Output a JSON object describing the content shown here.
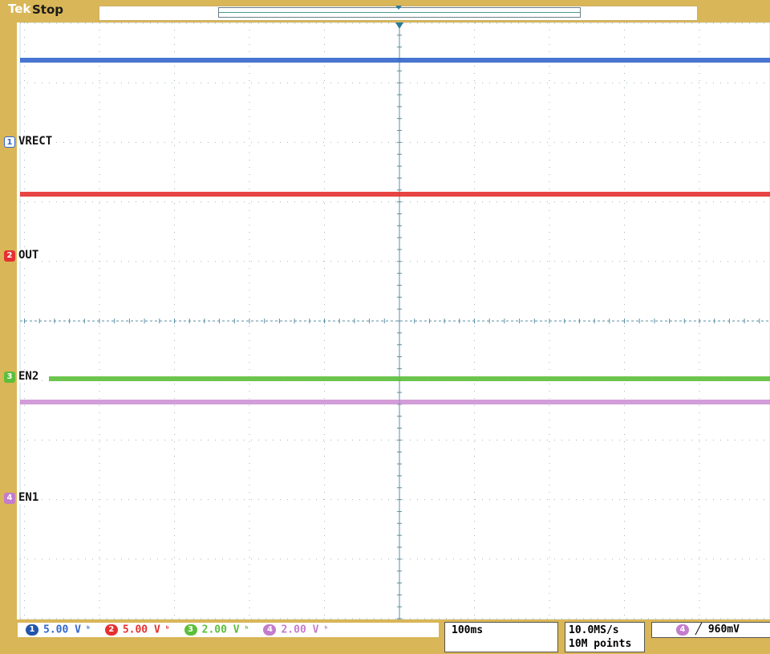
{
  "header": {
    "brand": "Tek",
    "acquisition_status": "Stop"
  },
  "channels": [
    {
      "id": "1",
      "label": "VRECT",
      "color": "#3366cc",
      "scale": "5.00 V",
      "coupling_icon": "bandwidth-limit-icon"
    },
    {
      "id": "2",
      "label": "OUT",
      "color": "#e53030",
      "scale": "5.00 V",
      "coupling_icon": "bandwidth-limit-icon"
    },
    {
      "id": "3",
      "label": "EN2",
      "color": "#5cbf3a",
      "scale": "2.00 V",
      "coupling_icon": "bandwidth-limit-icon"
    },
    {
      "id": "4",
      "label": "EN1",
      "color": "#c47ccc",
      "scale": "2.00 V",
      "coupling_icon": "bandwidth-limit-icon"
    }
  ],
  "horizontal": {
    "time_per_div": "100ms",
    "sample_rate": "10.0MS/s",
    "record_length": "10M points"
  },
  "trigger": {
    "source": "4",
    "slope_icon": "rising-edge-icon",
    "level": "960mV"
  },
  "colors": {
    "bezel": "#d9b657",
    "grid": "#9fb5c0",
    "center_axis": "#5a8fa3"
  }
}
